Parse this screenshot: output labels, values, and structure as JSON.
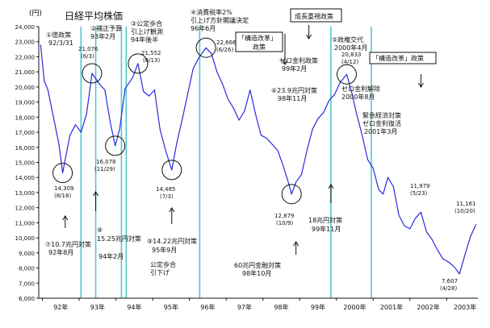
{
  "chart_data": {
    "type": "line",
    "title": "日経平均株価",
    "ylabel": "(円)",
    "ylim": [
      6000,
      24000
    ],
    "yticks": [
      6000,
      7000,
      8000,
      9000,
      10000,
      11000,
      12000,
      13000,
      14000,
      15000,
      16000,
      17000,
      18000,
      19000,
      20000,
      21000,
      22000,
      23000,
      24000
    ],
    "ytick_labels": [
      "6,000",
      "7,000",
      "8,000",
      "9,000",
      "10,000",
      "11,000",
      "12,000",
      "13,000",
      "14,000",
      "15,000",
      "16,000",
      "17,000",
      "18,000",
      "19,000",
      "20,000",
      "21,000",
      "22,000",
      "23,000",
      "24,000"
    ],
    "xlim": [
      1991.9,
      2003.85
    ],
    "xticks": [
      1992.5,
      1993.5,
      1994.5,
      1995.5,
      1996.5,
      1997.5,
      1998.5,
      1999.5,
      2000.5,
      2001.5,
      2002.5,
      2003.5
    ],
    "xtick_labels": [
      "92年",
      "93年",
      "94年",
      "95年",
      "96年",
      "97年",
      "98年",
      "99年",
      "2000年",
      "2001年",
      "2002年",
      "2003年"
    ],
    "grid": false,
    "series": [
      {
        "color": "#2a2ae0",
        "x": [
          1991.95,
          1992.05,
          1992.15,
          1992.25,
          1992.35,
          1992.45,
          1992.55,
          1992.62,
          1992.75,
          1992.9,
          1993.05,
          1993.2,
          1993.35,
          1993.55,
          1993.7,
          1993.85,
          1993.98,
          1994.1,
          1994.25,
          1994.45,
          1994.6,
          1994.75,
          1994.9,
          1995.05,
          1995.2,
          1995.35,
          1995.52,
          1995.65,
          1995.8,
          1995.95,
          1996.1,
          1996.25,
          1996.45,
          1996.6,
          1996.75,
          1996.9,
          1997.05,
          1997.2,
          1997.35,
          1997.5,
          1997.65,
          1997.8,
          1997.95,
          1998.1,
          1998.25,
          1998.4,
          1998.55,
          1998.7,
          1998.78,
          1998.9,
          1999.05,
          1999.2,
          1999.35,
          1999.5,
          1999.65,
          1999.8,
          1999.95,
          2000.1,
          2000.28,
          2000.42,
          2000.55,
          2000.7,
          2000.85,
          2001.0,
          2001.15,
          2001.27,
          2001.4,
          2001.55,
          2001.7,
          2001.85,
          2002.0,
          2002.15,
          2002.3,
          2002.45,
          2002.6,
          2002.75,
          2002.9,
          2003.05,
          2003.2,
          2003.35,
          2003.5,
          2003.65,
          2003.8
        ],
        "y": [
          22800,
          20400,
          19800,
          18600,
          17400,
          16200,
          14300,
          15200,
          16800,
          17500,
          17000,
          18200,
          20900,
          20200,
          19800,
          17600,
          16100,
          17200,
          19900,
          20600,
          21550,
          19700,
          19400,
          19800,
          17200,
          15800,
          14500,
          16200,
          17800,
          19500,
          21200,
          21900,
          22600,
          22200,
          21000,
          20200,
          19200,
          18600,
          17800,
          18400,
          19800,
          18200,
          16800,
          16600,
          16200,
          15800,
          14800,
          13600,
          12900,
          13700,
          14200,
          15800,
          17200,
          17900,
          18300,
          19100,
          19500,
          20300,
          20833,
          19600,
          18200,
          16800,
          15200,
          14600,
          13200,
          12900,
          14000,
          13400,
          11500,
          10800,
          10600,
          11300,
          11700,
          10400,
          9900,
          9200,
          8600,
          8400,
          8100,
          7607,
          8900,
          10100,
          10900
        ]
      }
    ],
    "annotations": [
      {
        "text": "①徳政策",
        "sub": "92/3/31"
      },
      {
        "text": "②補正予算",
        "sub": "93年2月"
      },
      {
        "text": "③公定歩合",
        "sub": "引上げ観測",
        "sub2": "94年後半"
      },
      {
        "text": "④消費税率2%",
        "sub": "引上げ方針閣議決定",
        "sub2": "96年6月"
      },
      {
        "text": "成長重視政策"
      },
      {
        "text": "⑤政権交代",
        "sub": "2000年4月"
      },
      {
        "text": "「構造改革」",
        "sub": "政策"
      },
      {
        "text": "「構造改革」政策"
      },
      {
        "text": "ゼロ金利政策",
        "sub": "99年2月"
      },
      {
        "text": "⑥23.9兆円対策",
        "sub": "98年11月"
      },
      {
        "text": "ゼロ金利解除",
        "sub": "2000年8月"
      },
      {
        "text": "緊急経済対策",
        "sub": "ゼロ金利復活",
        "sub2": "2001年3月"
      },
      {
        "text": "⑦10.7兆円対策",
        "sub": "92年8月"
      },
      {
        "text": "⑧",
        "sub": "15.25兆円対策",
        "sub2": "94年2月"
      },
      {
        "text": "⑨14.22兆円対策",
        "sub": "95年9月"
      },
      {
        "text": "公定歩合",
        "sub": "引下げ"
      },
      {
        "text": "60兆円金融対策",
        "sub": "98年10月"
      },
      {
        "text": "18兆円対策",
        "sub": "99年11月"
      }
    ],
    "point_labels": [
      {
        "value": "21,076",
        "date": "(6/3)"
      },
      {
        "value": "21,552",
        "date": "(6/13)"
      },
      {
        "value": "22,666",
        "date": "(6/26)"
      },
      {
        "value": "20,833",
        "date": "(4/12)"
      },
      {
        "value": "14,309",
        "date": "(8/18)"
      },
      {
        "value": "16,078",
        "date": "(11/29)"
      },
      {
        "value": "14,485",
        "date": "(7/3)"
      },
      {
        "value": "12,879",
        "date": "(10/9)"
      },
      {
        "value": "11,979",
        "date": "(5/23)"
      },
      {
        "value": "11,161",
        "date": "(10/20)"
      },
      {
        "value": "7,607",
        "date": "(4/28)"
      }
    ]
  }
}
